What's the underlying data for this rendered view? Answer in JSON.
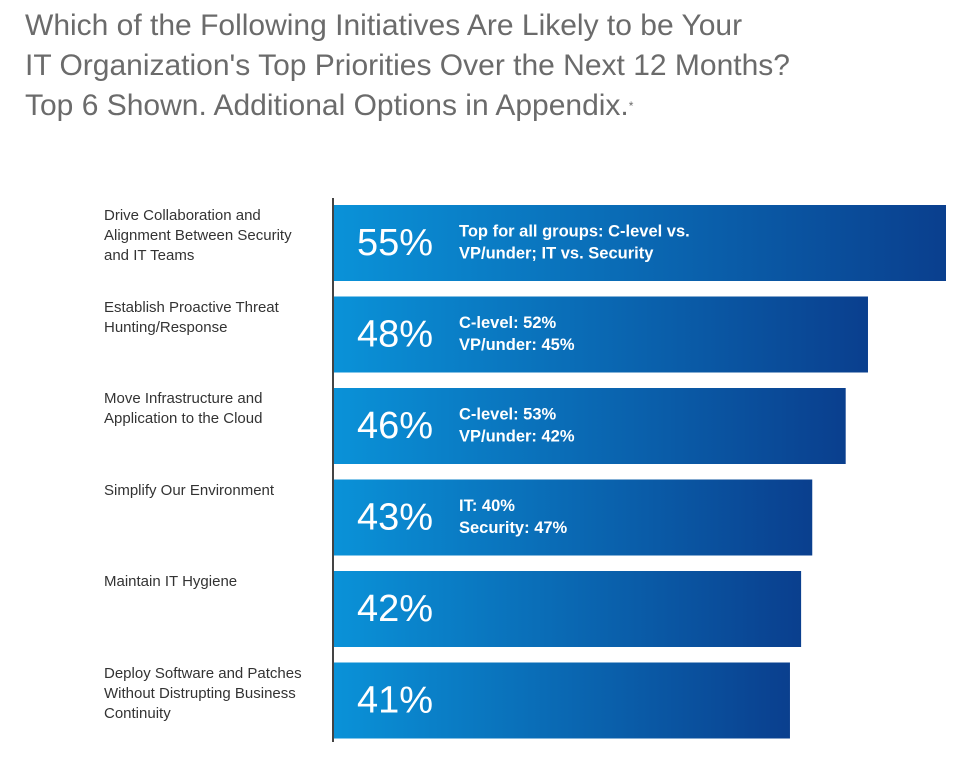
{
  "chart_data": {
    "type": "bar",
    "orientation": "horizontal",
    "title": [
      "Which of the Following Initiatives Are Likely to be Your",
      "IT Organization's Top Priorities Over the Next 12 Months?",
      "Top 6 Shown. Additional Options in Appendix."
    ],
    "title_mark": "*",
    "categories": [
      "Drive Collaboration and Alignment Between Security and IT Teams",
      "Establish Proactive Threat Hunting/Response",
      "Move Infrastructure and Application to the Cloud",
      "Simplify Our Environment",
      "Maintain IT Hygiene",
      "Deploy Software and Patches Without Distrupting Business Continuity"
    ],
    "values": [
      55,
      48,
      46,
      43,
      42,
      41
    ],
    "value_labels": [
      "55%",
      "48%",
      "46%",
      "43%",
      "42%",
      "41%"
    ],
    "annotations": [
      [
        "Top for all groups: C-level vs.",
        "VP/under; IT vs. Security"
      ],
      [
        "C-level: 52%",
        "VP/under: 45%"
      ],
      [
        "C-level: 53%",
        "VP/under: 42%"
      ],
      [
        "IT: 40%",
        "Security: 47%"
      ]
    ],
    "xlim": [
      0,
      55
    ],
    "color": [
      "#0a92d8",
      "#0a3f8e"
    ]
  }
}
